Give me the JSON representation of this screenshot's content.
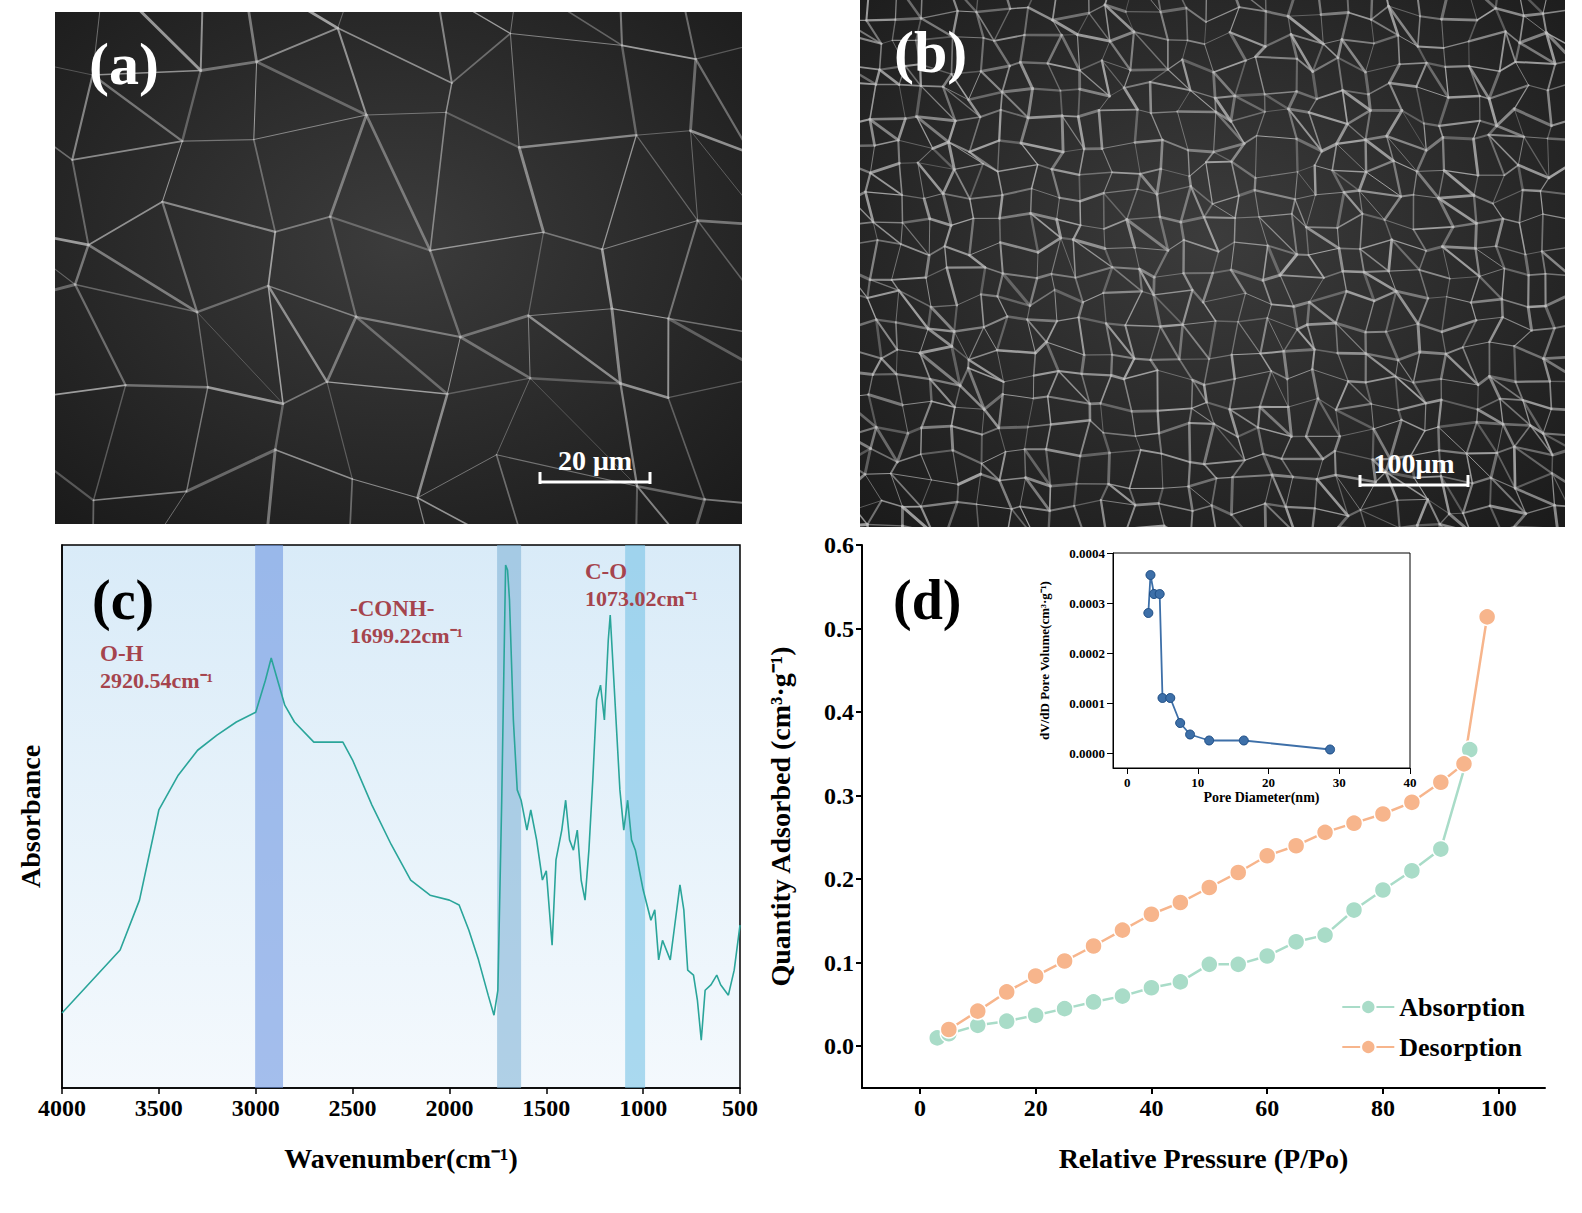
{
  "images": [
    {
      "label": "(a)",
      "scale_bar": "20 μm"
    },
    {
      "label": "(b)",
      "scale_bar": "100μm"
    }
  ],
  "chart_data": [
    {
      "label": "(c)",
      "type": "line",
      "x_label": "Wavenumber(cm⁻¹)",
      "y_label": "Absorbance",
      "color": "#2aa59a",
      "x": [
        4000,
        3700,
        3600,
        3500,
        3400,
        3300,
        3200,
        3100,
        3000,
        2950,
        2920,
        2880,
        2850,
        2800,
        2700,
        2600,
        2550,
        2500,
        2400,
        2300,
        2200,
        2100,
        2000,
        1950,
        1900,
        1850,
        1800,
        1770,
        1750,
        1730,
        1710,
        1700,
        1690,
        1670,
        1650,
        1630,
        1600,
        1580,
        1550,
        1520,
        1500,
        1480,
        1470,
        1450,
        1420,
        1400,
        1380,
        1360,
        1340,
        1320,
        1300,
        1280,
        1260,
        1240,
        1220,
        1200,
        1180,
        1170,
        1160,
        1140,
        1120,
        1100,
        1080,
        1060,
        1040,
        1000,
        960,
        940,
        920,
        900,
        860,
        840,
        810,
        790,
        770,
        740,
        720,
        700,
        680,
        650,
        620,
        600,
        560,
        530,
        500
      ],
      "values": [
        0.138,
        0.254,
        0.346,
        0.512,
        0.576,
        0.622,
        0.65,
        0.674,
        0.692,
        0.751,
        0.792,
        0.742,
        0.705,
        0.674,
        0.637,
        0.637,
        0.637,
        0.604,
        0.521,
        0.448,
        0.383,
        0.355,
        0.346,
        0.337,
        0.291,
        0.236,
        0.171,
        0.134,
        0.18,
        0.53,
        0.963,
        0.954,
        0.899,
        0.678,
        0.549,
        0.53,
        0.475,
        0.512,
        0.457,
        0.383,
        0.4,
        0.309,
        0.263,
        0.42,
        0.475,
        0.53,
        0.457,
        0.438,
        0.475,
        0.383,
        0.346,
        0.438,
        0.567,
        0.715,
        0.742,
        0.678,
        0.825,
        0.871,
        0.807,
        0.678,
        0.549,
        0.475,
        0.53,
        0.457,
        0.438,
        0.365,
        0.309,
        0.328,
        0.236,
        0.272,
        0.236,
        0.291,
        0.374,
        0.328,
        0.217,
        0.208,
        0.162,
        0.088,
        0.18,
        0.19,
        0.208,
        0.19,
        0.171,
        0.217,
        0.3
      ],
      "xlim": [
        4000,
        500
      ],
      "xticks": [
        4000,
        3500,
        3000,
        2500,
        2000,
        1500,
        1000,
        500
      ],
      "ylim": [
        0,
        1
      ],
      "tick_labels": "x",
      "bands": [
        {
          "from": 3003,
          "to": 2859,
          "label": "O-H",
          "value_label": "2920.54cm⁻¹"
        },
        {
          "from": 1754,
          "to": 1630,
          "label": "-CONH-",
          "value_label": "1699.22cm⁻¹"
        },
        {
          "from": 1093,
          "to": 990,
          "label": "C-O",
          "value_label": "1073.02cm⁻¹"
        }
      ]
    },
    {
      "label": "(d)",
      "type": "line",
      "x_label": "Relative Pressure (P/Po)",
      "y_label": "Quantity Adsorbed (cm³·g⁻¹)",
      "series": [
        {
          "name": "Absorption",
          "color": "#a9dcc8",
          "marker": "circle",
          "x": [
            3,
            5,
            10,
            15,
            20,
            25,
            30,
            35,
            40,
            45,
            50,
            55,
            60,
            65,
            70,
            75,
            80,
            85,
            90,
            95
          ],
          "values": [
            0.01,
            0.015,
            0.025,
            0.03,
            0.037,
            0.045,
            0.053,
            0.06,
            0.07,
            0.077,
            0.098,
            0.098,
            0.108,
            0.125,
            0.133,
            0.163,
            0.187,
            0.21,
            0.236,
            0.355
          ]
        },
        {
          "name": "Desorption",
          "color": "#f7b58c",
          "marker": "circle",
          "x": [
            5,
            10,
            15,
            20,
            25,
            30,
            35,
            40,
            45,
            50,
            55,
            60,
            65,
            70,
            75,
            80,
            85,
            90,
            94,
            98
          ],
          "values": [
            0.02,
            0.042,
            0.065,
            0.084,
            0.102,
            0.12,
            0.139,
            0.158,
            0.172,
            0.19,
            0.208,
            0.228,
            0.24,
            0.256,
            0.267,
            0.278,
            0.292,
            0.316,
            0.338,
            0.514
          ]
        }
      ],
      "xlim": [
        -10,
        108
      ],
      "xticks": [
        0,
        20,
        40,
        60,
        80,
        100
      ],
      "ylim": [
        -0.05,
        0.6
      ],
      "yticks": [
        {
          "value": 0,
          "label": "0.0"
        },
        0.1,
        0.2,
        0.3,
        0.4,
        0.5,
        0.6
      ],
      "legend": "lower right"
    },
    {
      "type": "line",
      "x_label": "Pore Diameter(nm)",
      "y_label": "dV/dD Pore Volume(cm³·g⁻¹)",
      "color": "#3d6fa8",
      "marker": "circle",
      "x": [
        3.0,
        3.3,
        3.8,
        4.6,
        5.0,
        6.1,
        7.5,
        8.9,
        11.6,
        16.5,
        28.7
      ],
      "values": [
        0.00028,
        0.000356,
        0.000318,
        0.000318,
        0.00011,
        0.00011,
        6e-05,
        3.7e-05,
        2.5e-05,
        2.5e-05,
        7e-06
      ],
      "xlim": [
        -2,
        40
      ],
      "xticks": [
        0,
        10,
        20,
        30,
        40
      ],
      "ylim": [
        -3e-05,
        0.0004
      ],
      "yticks": [
        {
          "value": 0,
          "label": "0.0000"
        },
        0.0001,
        0.0002,
        0.0003,
        0.0004
      ]
    }
  ]
}
